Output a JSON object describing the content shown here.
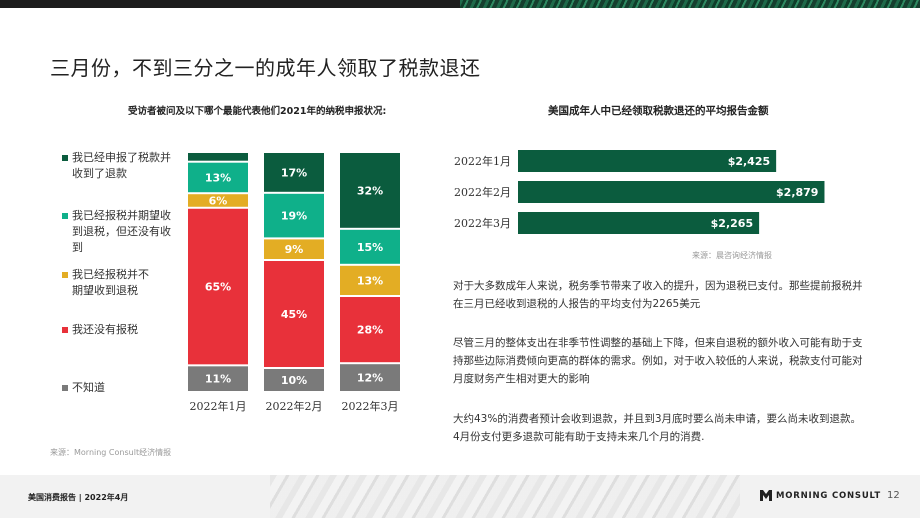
{
  "page": {
    "title": "三月份，不到三分之一的成年人领取了税款退还",
    "footer_left": "美国消费报告 | 2022年4月",
    "brand": "MORNING CONSULT",
    "page_number": "12"
  },
  "paragraphs": [
    "对于大多数成年人来说，税务季节带来了收入的提升，因为退税已支付。那些提前报税并在三月已经收到退税的人报告的平均支付为2265美元",
    "尽管三月的整体支出在非季节性调整的基础上下降，但来自退税的额外收入可能有助于支持那些边际消费倾向更高的群体的需求。例如，对于收入较低的人来说，税款支付可能对月度财务产生相对更大的影响",
    "大约43%的消费者预计会收到退款，并且到3月底时要么尚未申请，要么尚未收到退款。4月份支付更多退款可能有助于支持未来几个月的消费."
  ],
  "chart_data": [
    {
      "type": "bar",
      "stacked": true,
      "title": "受访者被问及以下哪个最能代表他们2021年的纳税申报状况:",
      "categories": [
        "2022年1月",
        "2022年2月",
        "2022年3月"
      ],
      "series": [
        {
          "name": "不知道",
          "color": "#7a7a7a",
          "values": [
            11,
            10,
            12
          ],
          "labels": [
            "11%",
            "10%",
            "12%"
          ]
        },
        {
          "name": "我还没有报税",
          "color": "#e8313a",
          "values": [
            65,
            45,
            28
          ],
          "labels": [
            "65%",
            "45%",
            "28%"
          ]
        },
        {
          "name": "我已经报税并不期望收到退税",
          "color": "#e3ad24",
          "values": [
            6,
            9,
            13
          ],
          "labels": [
            "6%",
            "9%",
            "13%"
          ]
        },
        {
          "name": "我已经报税并期望收到退税，但还没有收到",
          "color": "#0fb08a",
          "values": [
            13,
            19,
            15
          ],
          "labels": [
            "13%",
            "19%",
            "15%"
          ]
        },
        {
          "name": "我已经申报了税款并收到了退款",
          "color": "#0b5c3e",
          "values": [
            4,
            17,
            32
          ],
          "labels": [
            "",
            "17%",
            "32%"
          ]
        }
      ],
      "legend_lines": [
        {
          "lines": [
            "我已经申报了税款并",
            "收到了退款"
          ],
          "color": "#0b5c3e"
        },
        {
          "lines": [
            "我已经报税并期望收",
            "到退税，但还没有收",
            "到"
          ],
          "color": "#0fb08a"
        },
        {
          "lines": [
            "我已经报税并不",
            "期望收到退税"
          ],
          "color": "#e3ad24"
        },
        {
          "lines": [
            "我还没有报税"
          ],
          "color": "#e8313a"
        },
        {
          "lines": [
            "不知道"
          ],
          "color": "#7a7a7a"
        }
      ],
      "legend_position": "left",
      "ylim": [
        0,
        100
      ],
      "source": "来源：Morning Consult经济情报"
    },
    {
      "type": "bar",
      "orientation": "horizontal",
      "title": "美国成年人中已经领取税款退还的平均报告金额",
      "categories": [
        "2022年1月",
        "2022年2月",
        "2022年3月"
      ],
      "values": [
        2425,
        2879,
        2265
      ],
      "labels": [
        "$2,425",
        "$2,879",
        "$2,265"
      ],
      "color": "#0b5c3e",
      "xlim": [
        0,
        3100
      ],
      "source": "来源：晨咨询经济情报"
    }
  ]
}
